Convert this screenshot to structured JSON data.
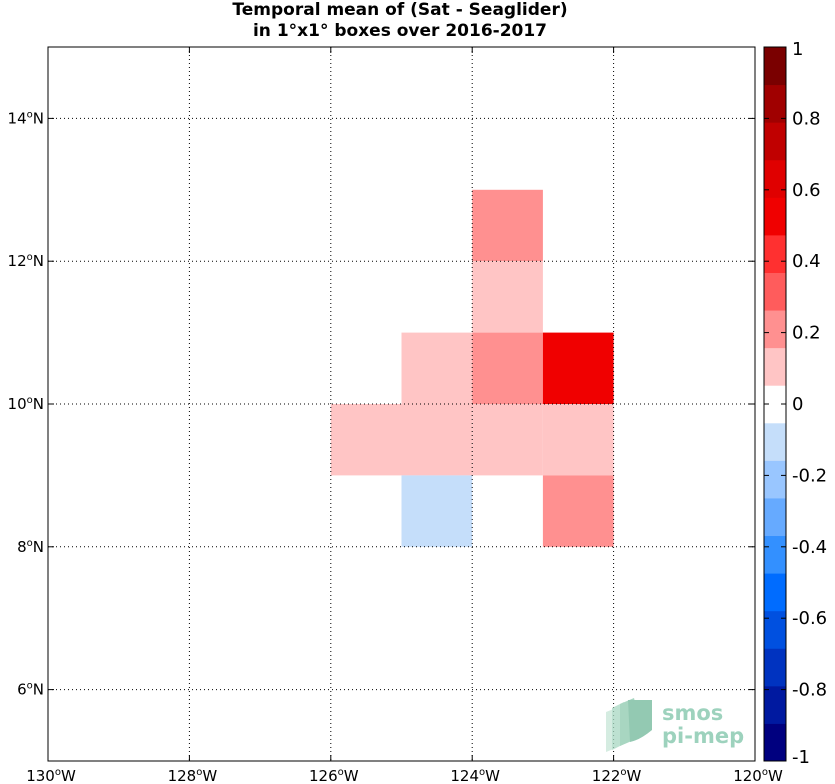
{
  "chart_data": {
    "type": "heatmap",
    "title_lines": [
      "Temporal mean of (Sat - Seaglider)",
      "in 1°x1° boxes over 2016-2017"
    ],
    "xlim": [
      -130,
      -120
    ],
    "ylim": [
      5,
      15
    ],
    "x_ticks": [
      {
        "value": -130,
        "deg": "130",
        "hemi": "W"
      },
      {
        "value": -128,
        "deg": "128",
        "hemi": "W"
      },
      {
        "value": -126,
        "deg": "126",
        "hemi": "W"
      },
      {
        "value": -124,
        "deg": "124",
        "hemi": "W"
      },
      {
        "value": -122,
        "deg": "122",
        "hemi": "W"
      },
      {
        "value": -120,
        "deg": "120",
        "hemi": "W"
      }
    ],
    "y_ticks": [
      {
        "value": 6,
        "deg": "6",
        "hemi": "N"
      },
      {
        "value": 8,
        "deg": "8",
        "hemi": "N"
      },
      {
        "value": 10,
        "deg": "10",
        "hemi": "N"
      },
      {
        "value": 12,
        "deg": "12",
        "hemi": "N"
      },
      {
        "value": 14,
        "deg": "14",
        "hemi": "N"
      }
    ],
    "grid": true,
    "cells": [
      {
        "lon": -124,
        "lat": 12,
        "value": 0.25
      },
      {
        "lon": -124,
        "lat": 11,
        "value": 0.15
      },
      {
        "lon": -125,
        "lat": 10,
        "value": 0.15
      },
      {
        "lon": -124,
        "lat": 10,
        "value": 0.25
      },
      {
        "lon": -123,
        "lat": 10,
        "value": 0.55
      },
      {
        "lon": -126,
        "lat": 9,
        "value": 0.15
      },
      {
        "lon": -125,
        "lat": 9,
        "value": 0.15
      },
      {
        "lon": -124,
        "lat": 9,
        "value": 0.15
      },
      {
        "lon": -123,
        "lat": 9,
        "value": 0.15
      },
      {
        "lon": -125,
        "lat": 8,
        "value": -0.15
      },
      {
        "lon": -123,
        "lat": 8,
        "value": 0.25
      }
    ],
    "colorbar": {
      "range": [
        -1,
        1
      ],
      "colors": [
        "#00007f",
        "#0019a0",
        "#0033c0",
        "#0050e0",
        "#006cff",
        "#3390ff",
        "#66aaff",
        "#99c6ff",
        "#c5defa",
        "#ffffff",
        "#ffc5c5",
        "#ff9090",
        "#ff5c5c",
        "#ff3030",
        "#f00000",
        "#e00000",
        "#c00000",
        "#a00000",
        "#7a0000"
      ],
      "tick_labels": [
        "1",
        "0.8",
        "0.6",
        "0.4",
        "0.2",
        "0",
        "-0.2",
        "-0.4",
        "-0.6",
        "-0.8",
        "-1"
      ],
      "tick_values": [
        1,
        0.8,
        0.6,
        0.4,
        0.2,
        0,
        -0.2,
        -0.4,
        -0.6,
        -0.8,
        -1
      ]
    }
  },
  "logo": {
    "line1": "smos",
    "line2": "pi-mep"
  }
}
